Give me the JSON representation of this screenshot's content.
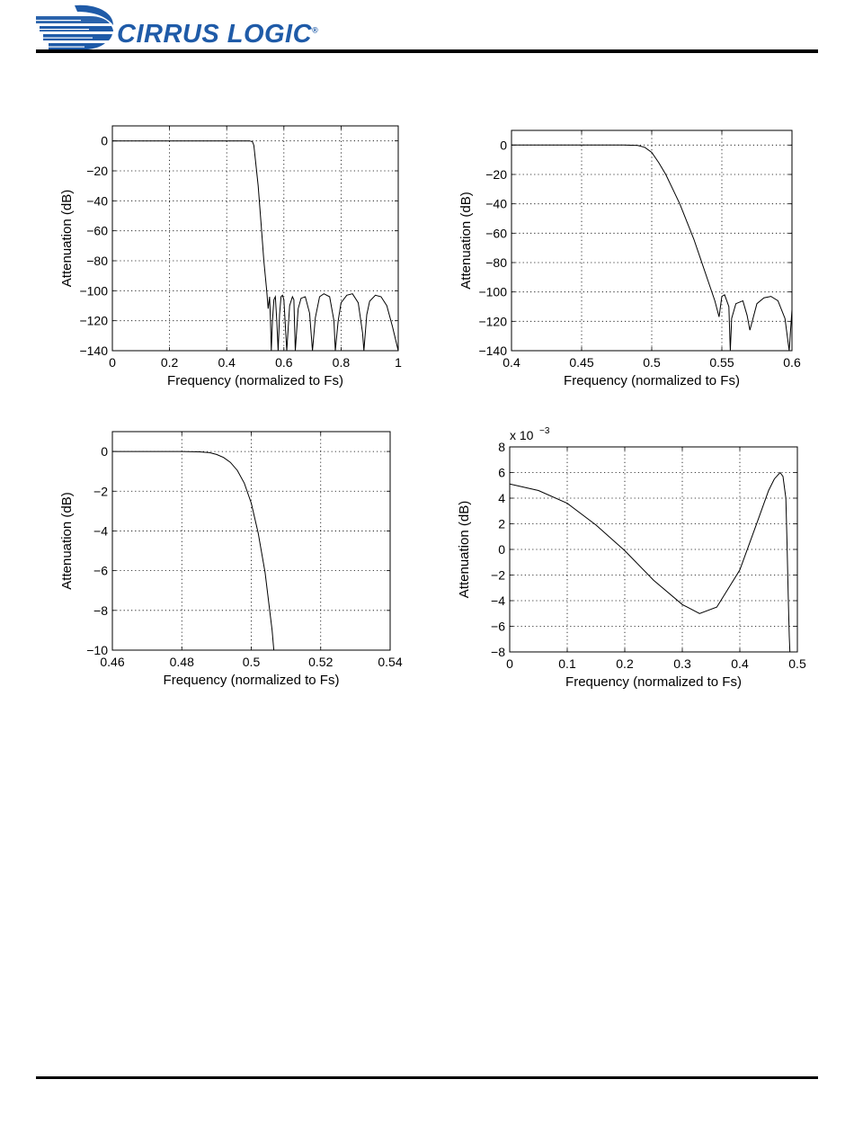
{
  "header": {
    "company": "CIRRUS LOGIC",
    "registered_mark": "®",
    "logo_color": "#1f5ba8"
  },
  "chart_data": [
    {
      "type": "line",
      "xlabel": "Frequency (normalized to Fs)",
      "ylabel": "Attenuation (dB)",
      "xlim": [
        0,
        1
      ],
      "ylim": [
        -140,
        10
      ],
      "x_ticks": [
        "0",
        "0.2",
        "0.4",
        "0.6",
        "0.8",
        "1"
      ],
      "y_ticks": [
        "0",
        "-20",
        "-40",
        "-60",
        "-80",
        "-100",
        "-120",
        "-140"
      ],
      "grid": true,
      "series": [
        {
          "x": [
            0,
            0.2,
            0.4,
            0.46,
            0.48,
            0.49,
            0.495,
            0.5,
            0.51,
            0.52,
            0.53,
            0.54,
            0.545,
            0.55,
            0.553,
            0.556,
            0.56,
            0.565,
            0.57,
            0.575,
            0.58,
            0.585,
            0.59,
            0.595,
            0.6,
            0.61,
            0.62,
            0.63,
            0.635,
            0.64,
            0.65,
            0.66,
            0.675,
            0.69,
            0.7,
            0.71,
            0.725,
            0.74,
            0.76,
            0.775,
            0.78,
            0.79,
            0.8,
            0.82,
            0.84,
            0.86,
            0.875,
            0.88,
            0.89,
            0.9,
            0.92,
            0.94,
            0.96,
            0.98,
            1.0
          ],
          "y": [
            0,
            0,
            0,
            0,
            0,
            -0.5,
            -3,
            -12,
            -30,
            -55,
            -80,
            -100,
            -112,
            -104,
            -120,
            -140,
            -120,
            -106,
            -104,
            -120,
            -140,
            -116,
            -104,
            -103,
            -106,
            -140,
            -110,
            -104,
            -106,
            -140,
            -112,
            -105,
            -104,
            -115,
            -140,
            -118,
            -104,
            -102,
            -104,
            -120,
            -140,
            -120,
            -108,
            -103,
            -102,
            -108,
            -128,
            -140,
            -116,
            -107,
            -103,
            -104,
            -110,
            -124,
            -140
          ]
        }
      ]
    },
    {
      "type": "line",
      "xlabel": "Frequency (normalized to Fs)",
      "ylabel": "Attenuation (dB)",
      "xlim": [
        0.4,
        0.6
      ],
      "ylim": [
        -140,
        10
      ],
      "x_ticks": [
        "0.4",
        "0.45",
        "0.5",
        "0.55",
        "0.6"
      ],
      "y_ticks": [
        "0",
        "-20",
        "-40",
        "-60",
        "-80",
        "-100",
        "-120",
        "-140"
      ],
      "grid": true,
      "series": [
        {
          "x": [
            0.4,
            0.45,
            0.48,
            0.49,
            0.495,
            0.5,
            0.505,
            0.51,
            0.515,
            0.52,
            0.525,
            0.53,
            0.535,
            0.54,
            0.545,
            0.548,
            0.55,
            0.552,
            0.555,
            0.556,
            0.557,
            0.56,
            0.565,
            0.568,
            0.57,
            0.575,
            0.58,
            0.585,
            0.59,
            0.595,
            0.598,
            0.6
          ],
          "y": [
            0,
            0,
            0,
            -0.3,
            -1.5,
            -5,
            -12,
            -20,
            -30,
            -40,
            -52,
            -64,
            -78,
            -92,
            -106,
            -117,
            -103,
            -102,
            -110,
            -140,
            -118,
            -108,
            -106,
            -116,
            -126,
            -108,
            -104,
            -103,
            -106,
            -118,
            -140,
            -112
          ]
        }
      ]
    },
    {
      "type": "line",
      "xlabel": "Frequency (normalized to Fs)",
      "ylabel": "Attenuation (dB)",
      "xlim": [
        0.46,
        0.54
      ],
      "ylim": [
        -10,
        1
      ],
      "x_ticks": [
        "0.46",
        "0.48",
        "0.5",
        "0.52",
        "0.54"
      ],
      "y_ticks": [
        "0",
        "-2",
        "-4",
        "-6",
        "-8",
        "-10"
      ],
      "grid": true,
      "series": [
        {
          "x": [
            0.46,
            0.48,
            0.485,
            0.488,
            0.49,
            0.492,
            0.494,
            0.496,
            0.498,
            0.5,
            0.502,
            0.504,
            0.506,
            0.5065
          ],
          "y": [
            0,
            0,
            -0.02,
            -0.06,
            -0.15,
            -0.3,
            -0.55,
            -0.95,
            -1.6,
            -2.6,
            -4.1,
            -6.1,
            -9.0,
            -10
          ]
        }
      ]
    },
    {
      "type": "line",
      "xlabel": "Frequency (normalized to Fs)",
      "ylabel": "Attenuation (dB)",
      "y_multiplier": "x 10",
      "y_multiplier_exp": "−3",
      "xlim": [
        0,
        0.5
      ],
      "ylim": [
        -8,
        8
      ],
      "x_ticks": [
        "0",
        "0.1",
        "0.2",
        "0.3",
        "0.4",
        "0.5"
      ],
      "y_ticks": [
        "8",
        "6",
        "4",
        "2",
        "0",
        "-2",
        "-4",
        "-6",
        "-8"
      ],
      "grid": true,
      "series": [
        {
          "x": [
            0,
            0.05,
            0.1,
            0.15,
            0.2,
            0.25,
            0.3,
            0.33,
            0.36,
            0.4,
            0.43,
            0.45,
            0.46,
            0.47,
            0.475,
            0.48,
            0.482,
            0.484,
            0.486,
            0.487
          ],
          "y": [
            5.1,
            4.6,
            3.6,
            1.9,
            -0.1,
            -2.4,
            -4.3,
            -5.0,
            -4.5,
            -1.6,
            2.1,
            4.6,
            5.5,
            6.0,
            5.7,
            4.0,
            0.5,
            -3.5,
            -6.8,
            -8
          ]
        }
      ]
    }
  ]
}
